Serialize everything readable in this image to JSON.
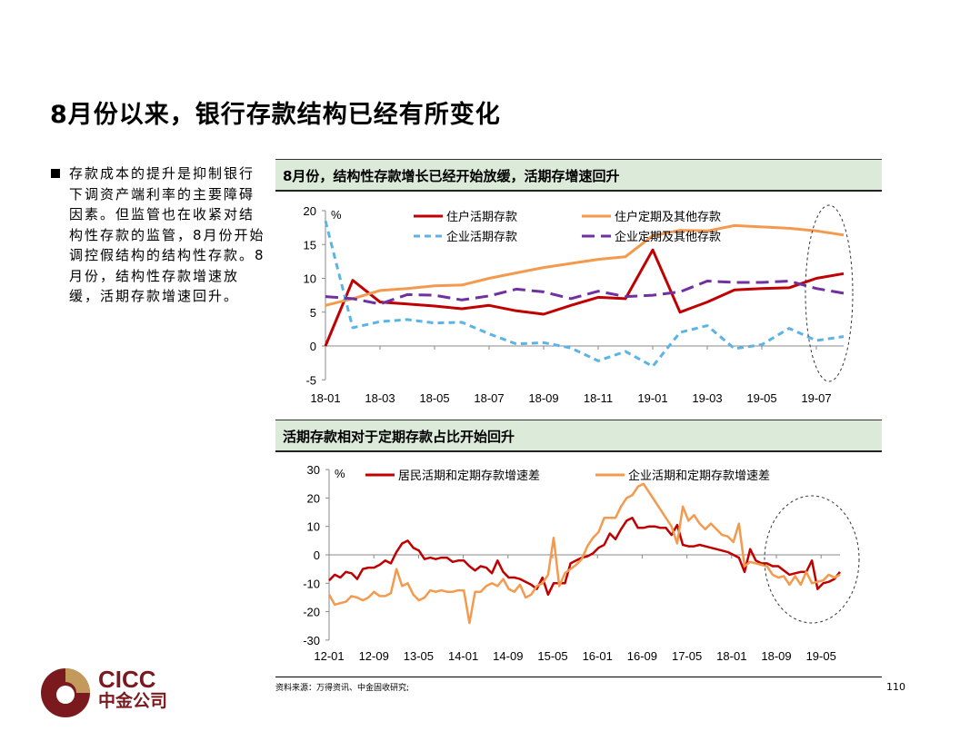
{
  "title": "8月份以来，银行存款结构已经有所变化",
  "bullet": "存款成本的提升是抑制银行下调资产端利率的主要障碍因素。但监管也在收紧对结构性存款的监管，8月份开始调控假结构的结构性存款。8月份，结构性存款增速放缓，活期存款增速回升。",
  "source": "资料来源：万得资讯、中金固收研究;",
  "page_number": "110",
  "logo": {
    "en": "CICC",
    "cn": "中金公司"
  },
  "chart_data": [
    {
      "type": "line",
      "title": "8月份，结构性存款增长已经开始放缓，活期存增速回升",
      "ylabel": "%",
      "ylim": [
        -5,
        20
      ],
      "yticks": [
        -5,
        0,
        5,
        10,
        15,
        20
      ],
      "x_tick_labels": [
        "18-01",
        "18-03",
        "18-05",
        "18-07",
        "18-09",
        "18-11",
        "19-01",
        "19-03",
        "19-05",
        "19-07"
      ],
      "x": [
        "18-01",
        "18-02",
        "18-03",
        "18-04",
        "18-05",
        "18-06",
        "18-07",
        "18-08",
        "18-09",
        "18-10",
        "18-11",
        "18-12",
        "19-01",
        "19-02",
        "19-03",
        "19-04",
        "19-05",
        "19-06",
        "19-07",
        "19-08"
      ],
      "legend": "top",
      "annotation": "dashed ellipse around 19-07 to 19-08",
      "series": [
        {
          "name": "住户活期存款",
          "color": "#c00000",
          "dash": "",
          "values": [
            0,
            9.7,
            6.5,
            6.2,
            5.9,
            5.5,
            6.0,
            5.2,
            4.7,
            6.0,
            7.2,
            7.0,
            14.2,
            5.0,
            6.5,
            8.3,
            8.5,
            8.6,
            10.0,
            10.7
          ]
        },
        {
          "name": "住户定期及其他存款",
          "color": "#f39a4e",
          "dash": "",
          "values": [
            6.0,
            7.0,
            8.2,
            8.5,
            8.9,
            9.0,
            10.0,
            10.8,
            11.6,
            12.2,
            12.8,
            13.2,
            16.3,
            17.1,
            17.0,
            17.8,
            17.6,
            17.4,
            17.0,
            16.4
          ]
        },
        {
          "name": "企业活期存款",
          "color": "#5bb4e6",
          "dash": "7,5",
          "values": [
            18.5,
            2.7,
            3.6,
            3.9,
            3.4,
            3.5,
            1.8,
            0.3,
            0.5,
            -0.3,
            -2.2,
            -0.8,
            -3.0,
            2.0,
            3.0,
            -0.4,
            0.2,
            2.6,
            0.8,
            1.4
          ]
        },
        {
          "name": "企业定期及其他存款",
          "color": "#7030a0",
          "dash": "14,7",
          "values": [
            7.3,
            7.0,
            6.2,
            7.6,
            7.5,
            6.8,
            7.4,
            8.4,
            8.0,
            7.0,
            8.1,
            7.3,
            7.5,
            8.0,
            9.6,
            9.4,
            9.4,
            9.6,
            8.5,
            7.8
          ]
        }
      ]
    },
    {
      "type": "line",
      "title": "活期存款相对于定期存款占比开始回升",
      "ylabel": "%",
      "ylim": [
        -30,
        30
      ],
      "yticks": [
        -30,
        -20,
        -10,
        0,
        10,
        20,
        30
      ],
      "x_tick_labels": [
        "12-01",
        "12-09",
        "13-05",
        "14-01",
        "14-09",
        "15-05",
        "16-01",
        "16-09",
        "17-05",
        "18-01",
        "18-09",
        "19-05"
      ],
      "x_range": [
        "12-01",
        "19-08"
      ],
      "legend": "top",
      "annotation": "dashed ellipse around 18-09 to 19-08",
      "series": [
        {
          "name": "居民活期和定期存款增速差",
          "color": "#c00000",
          "values": [
            -9,
            -7,
            -8,
            -6,
            -6.5,
            -8.5,
            -5,
            -4.5,
            -4.5,
            -3.5,
            -2,
            -3,
            1,
            4,
            5,
            2.5,
            1.5,
            -1.5,
            -1,
            -1.5,
            -1,
            -1,
            -2.5,
            -2,
            -2,
            -4,
            -5.5,
            -4,
            -4.5,
            -6.5,
            -2,
            -6,
            -8,
            -8,
            -8.5,
            -9.5,
            -10.5,
            -12,
            -8,
            -14,
            -10,
            -10,
            -10,
            -3,
            -2,
            -1,
            -0.5,
            0.5,
            2.5,
            3.5,
            7.5,
            5.5,
            9,
            12,
            13,
            9.5,
            9.5,
            10,
            10,
            9.5,
            9.5,
            7,
            10.5,
            3.5,
            3,
            3,
            3.5,
            3,
            2.5,
            2,
            1.5,
            1,
            0,
            -1,
            -6,
            2,
            -2,
            -3,
            -3,
            -4,
            -4,
            -5.5,
            -7,
            -6.5,
            -6,
            -6,
            -2,
            -12,
            -10,
            -9.5,
            -8.5,
            -6
          ]
        },
        {
          "name": "企业活期和定期存款增速差",
          "color": "#f39a4e",
          "values": [
            -14,
            -17.5,
            -17,
            -16.5,
            -14.5,
            -15,
            -16,
            -15,
            -13,
            -14.5,
            -14.5,
            -13.5,
            -5,
            -11,
            -10,
            -14,
            -16,
            -15,
            -12.5,
            -13,
            -12.5,
            -13,
            -13,
            -12.5,
            -12.5,
            -24,
            -13,
            -13,
            -11,
            -10,
            -11,
            -8.5,
            -12,
            -13,
            -10.5,
            -15,
            -14,
            -11,
            -10,
            -7,
            6,
            -11,
            -6.5,
            -5,
            -3.5,
            -1.5,
            3,
            6,
            8,
            13,
            13,
            13,
            17,
            20,
            21,
            24,
            25,
            22,
            19,
            16,
            13,
            10,
            4,
            17,
            12,
            14,
            11,
            9,
            11,
            9,
            7,
            6.5,
            4.5,
            11,
            -4,
            -2.5,
            -3,
            -3.5,
            -4,
            -7,
            -8,
            -7.5,
            -10.5,
            -7.5,
            -10.5,
            -6,
            -10,
            -9.5,
            -9,
            -7,
            -8,
            -7
          ]
        }
      ]
    }
  ]
}
